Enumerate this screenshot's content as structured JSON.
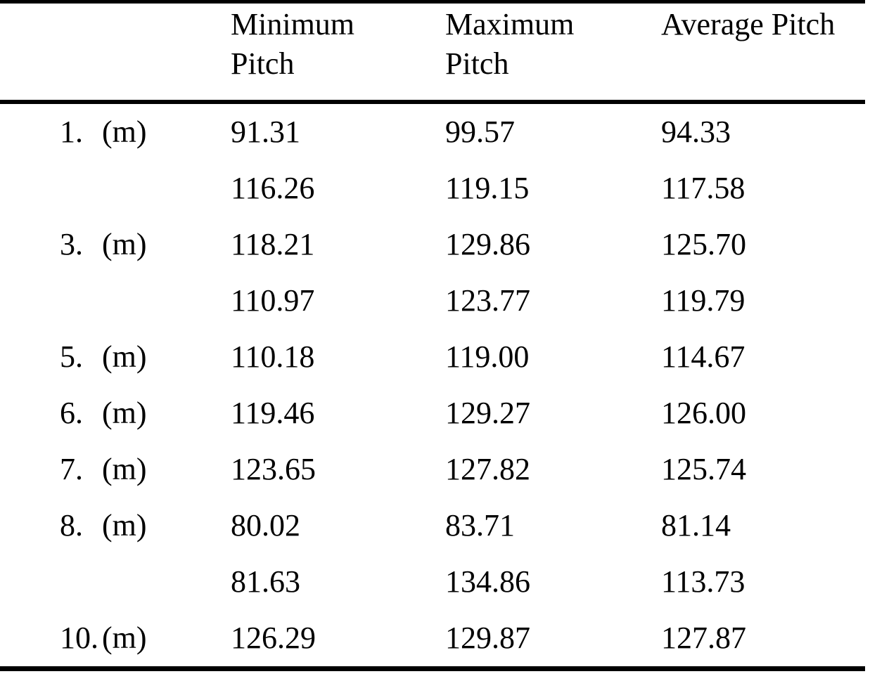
{
  "page": {
    "background": "#ffffff",
    "text_color": "#000000",
    "rule_color": "#000000"
  },
  "table": {
    "columns": [
      {
        "label": "",
        "lines": [
          "",
          ""
        ]
      },
      {
        "label": "Minimum Pitch",
        "lines": [
          "Minimum",
          "Pitch"
        ]
      },
      {
        "label": "Maximum Pitch",
        "lines": [
          "Maximum",
          "Pitch"
        ]
      },
      {
        "label": "Average Pitch",
        "lines": [
          "Average Pitch",
          ""
        ]
      }
    ],
    "rows": [
      {
        "num": "1.",
        "unit": "(m)",
        "min": "91.31",
        "max": "99.57",
        "avg": "94.33"
      },
      {
        "num": "",
        "unit": "",
        "min": "116.26",
        "max": "119.15",
        "avg": "117.58"
      },
      {
        "num": "3.",
        "unit": "(m)",
        "min": "118.21",
        "max": "129.86",
        "avg": "125.70"
      },
      {
        "num": "",
        "unit": "",
        "min": "110.97",
        "max": "123.77",
        "avg": "119.79"
      },
      {
        "num": "5.",
        "unit": "(m)",
        "min": "110.18",
        "max": "119.00",
        "avg": "114.67"
      },
      {
        "num": "6.",
        "unit": "(m)",
        "min": "119.46",
        "max": "129.27",
        "avg": "126.00"
      },
      {
        "num": "7.",
        "unit": "(m)",
        "min": "123.65",
        "max": "127.82",
        "avg": "125.74"
      },
      {
        "num": "8.",
        "unit": "(m)",
        "min": "80.02",
        "max": "83.71",
        "avg": "81.14"
      },
      {
        "num": "",
        "unit": "",
        "min": "81.63",
        "max": "134.86",
        "avg": "113.73"
      },
      {
        "num": "10.",
        "unit": "(m)",
        "min": "126.29",
        "max": "129.87",
        "avg": "127.87"
      }
    ]
  },
  "chart_data": {
    "type": "table",
    "columns": [
      "",
      "Minimum Pitch",
      "Maximum Pitch",
      "Average Pitch"
    ],
    "rows": [
      [
        "1. (m)",
        91.31,
        99.57,
        94.33
      ],
      [
        "",
        116.26,
        119.15,
        117.58
      ],
      [
        "3. (m)",
        118.21,
        129.86,
        125.7
      ],
      [
        "",
        110.97,
        123.77,
        119.79
      ],
      [
        "5. (m)",
        110.18,
        119.0,
        114.67
      ],
      [
        "6. (m)",
        119.46,
        129.27,
        126.0
      ],
      [
        "7. (m)",
        123.65,
        127.82,
        125.74
      ],
      [
        "8. (m)",
        80.02,
        83.71,
        81.14
      ],
      [
        "",
        81.63,
        134.86,
        113.73
      ],
      [
        "10. (m)",
        126.29,
        129.87,
        127.87
      ]
    ]
  }
}
